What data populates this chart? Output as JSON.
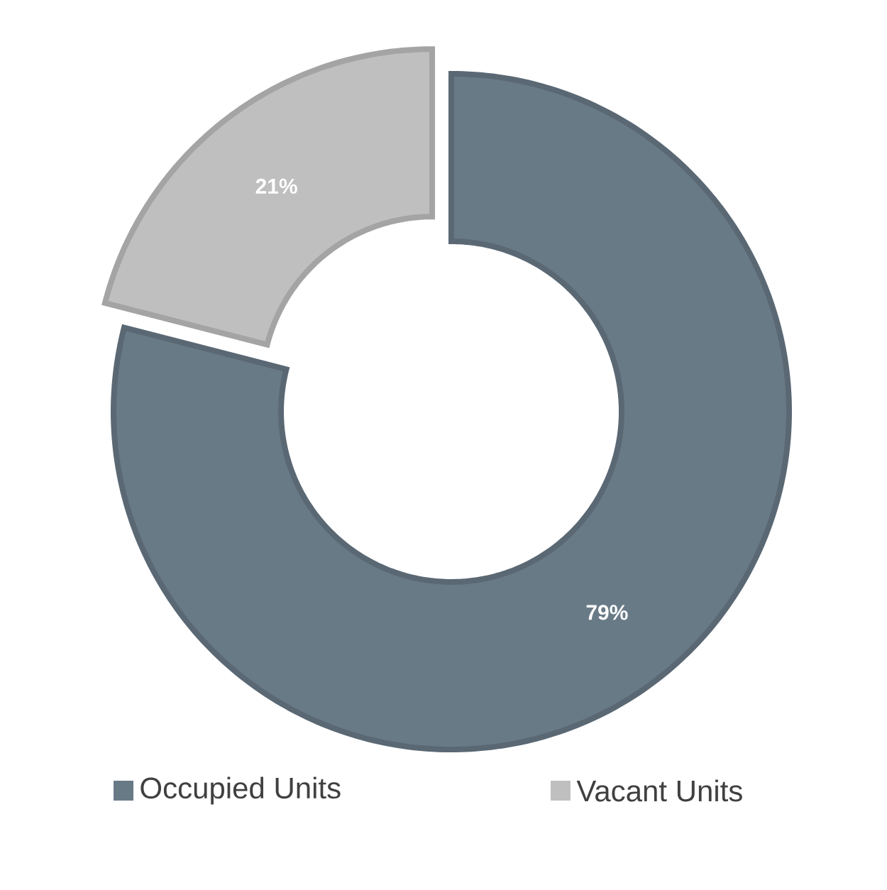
{
  "chart_data": {
    "type": "donut",
    "categories": [
      "Occupied Units",
      "Vacant Units"
    ],
    "values": [
      79,
      21
    ],
    "colors": [
      "#697a87",
      "#bfbfbf"
    ],
    "value_labels": [
      "79%",
      "21%"
    ],
    "legend": "bottom"
  }
}
